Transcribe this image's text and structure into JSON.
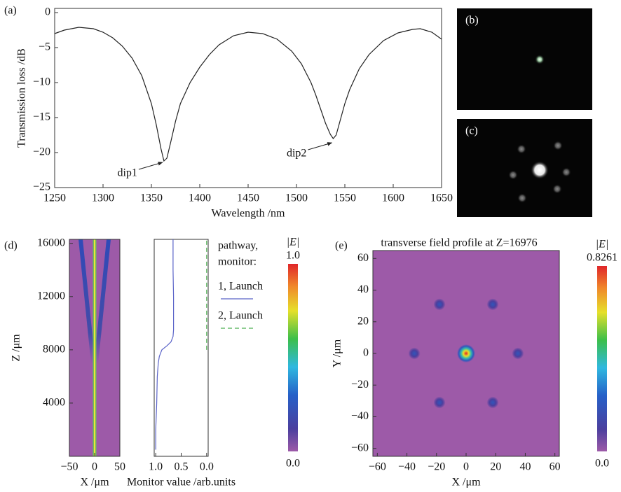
{
  "chart_data": [
    {
      "type": "line",
      "panel_label": "(a)",
      "x_label": "Wavelength /nm",
      "y_label": "Transmission loss /dB",
      "x": [
        1250,
        1260,
        1275,
        1290,
        1300,
        1310,
        1320,
        1330,
        1340,
        1350,
        1355,
        1360,
        1363,
        1366,
        1370,
        1375,
        1380,
        1390,
        1400,
        1410,
        1420,
        1435,
        1450,
        1465,
        1480,
        1495,
        1505,
        1515,
        1520,
        1525,
        1530,
        1535,
        1538,
        1541,
        1545,
        1550,
        1555,
        1565,
        1575,
        1590,
        1605,
        1620,
        1628,
        1640,
        1650
      ],
      "series": [
        {
          "color": "#222222",
          "values": [
            -3.0,
            -2.5,
            -2.1,
            -2.3,
            -2.8,
            -3.6,
            -4.8,
            -6.5,
            -9.0,
            -13.0,
            -16.0,
            -19.5,
            -21.2,
            -20.8,
            -18.5,
            -15.5,
            -13.0,
            -10.0,
            -7.8,
            -6.0,
            -4.6,
            -3.3,
            -2.8,
            -3.0,
            -3.8,
            -5.5,
            -7.3,
            -10.0,
            -11.8,
            -13.8,
            -15.8,
            -17.4,
            -18.0,
            -17.5,
            -15.5,
            -13.0,
            -11.0,
            -8.0,
            -6.0,
            -4.0,
            -2.9,
            -2.4,
            -2.3,
            -2.8,
            -3.8
          ]
        }
      ],
      "xlim": [
        1250,
        1650
      ],
      "ylim": [
        -25,
        0.6
      ],
      "xticks": [
        1250,
        1300,
        1350,
        1400,
        1450,
        1500,
        1550,
        1600,
        1650
      ],
      "yticks": [
        0,
        {
          "value": -5,
          "label": "−5"
        },
        {
          "value": -10,
          "label": "−10"
        },
        {
          "value": -15,
          "label": "−15"
        },
        {
          "value": -20,
          "label": "−20"
        },
        {
          "value": -25,
          "label": "−25"
        }
      ],
      "annotations": [
        {
          "text": "dip1",
          "x": 1363,
          "y": -21.4
        },
        {
          "text": "dip2",
          "x": 1538,
          "y": -18.6
        }
      ]
    },
    {
      "type": "image",
      "panel_label": "(b)"
    },
    {
      "type": "image",
      "panel_label": "(c)"
    },
    {
      "type": "field",
      "panel_label": "(d)",
      "x_label": "X /μm",
      "y_label": "Z /μm",
      "xlim": [
        -50,
        50
      ],
      "ylim": [
        0,
        16300
      ],
      "xticks": [
        {
          "value": -50,
          "label": "−50"
        },
        0,
        50
      ],
      "yticks": [
        4000,
        8000,
        12000,
        16000
      ],
      "colorbar": {
        "label": "|E|",
        "ticks": [
          {
            "value": 0,
            "label": "0.0"
          },
          {
            "value": 1,
            "label": "1.0"
          }
        ]
      }
    },
    {
      "type": "monitor",
      "x_label": "Monitor value /arb.units",
      "legend_title": [
        "pathway,",
        "monitor:"
      ],
      "xlim": [
        1.03,
        -0.03
      ],
      "ylim": [
        0,
        16300
      ],
      "xticks": [
        {
          "value": 1,
          "label": "1.0"
        },
        0.5,
        {
          "value": 0,
          "label": "0.0"
        }
      ],
      "series": [
        {
          "name": "1, Launch",
          "color": "#5a63c8",
          "dash": false,
          "z": [
            500,
            2000,
            4000,
            6000,
            7000,
            7500,
            8000,
            8300,
            8600,
            9000,
            9500,
            10500,
            12000,
            14000,
            16300
          ],
          "values": [
            1.0,
            1.0,
            0.98,
            0.97,
            0.95,
            0.93,
            0.88,
            0.78,
            0.7,
            0.66,
            0.65,
            0.65,
            0.65,
            0.66,
            0.66
          ]
        },
        {
          "name": "2, Launch",
          "color": "#4caf50",
          "dash": true,
          "z": [
            8000,
            16300
          ],
          "values": [
            0,
            0
          ]
        }
      ]
    },
    {
      "type": "spots",
      "panel_label": "(e)",
      "title": "transverse field profile at Z=16976",
      "x_label": "X /μm",
      "y_label": "Y /μm",
      "xlim": [
        -63,
        63
      ],
      "ylim": [
        -65,
        65
      ],
      "xticks": [
        {
          "value": -60,
          "label": "−60"
        },
        {
          "value": -40,
          "label": "−40"
        },
        {
          "value": -20,
          "label": "−20"
        },
        0,
        20,
        40,
        60
      ],
      "yticks": [
        {
          "value": -60,
          "label": "−60"
        },
        {
          "value": -40,
          "label": "−40"
        },
        {
          "value": -20,
          "label": "−20"
        },
        0,
        20,
        40,
        60
      ],
      "x": [
        0,
        -18,
        18,
        -35,
        35,
        -18,
        18
      ],
      "y": [
        0,
        31,
        31,
        0,
        0,
        -31,
        -31
      ],
      "values": [
        0.8261,
        0.2,
        0.2,
        0.2,
        0.2,
        0.2,
        0.2
      ],
      "colorbar": {
        "label": "|E|",
        "ticks": [
          {
            "value": 0,
            "label": "0.0"
          },
          0.8261
        ]
      }
    }
  ]
}
